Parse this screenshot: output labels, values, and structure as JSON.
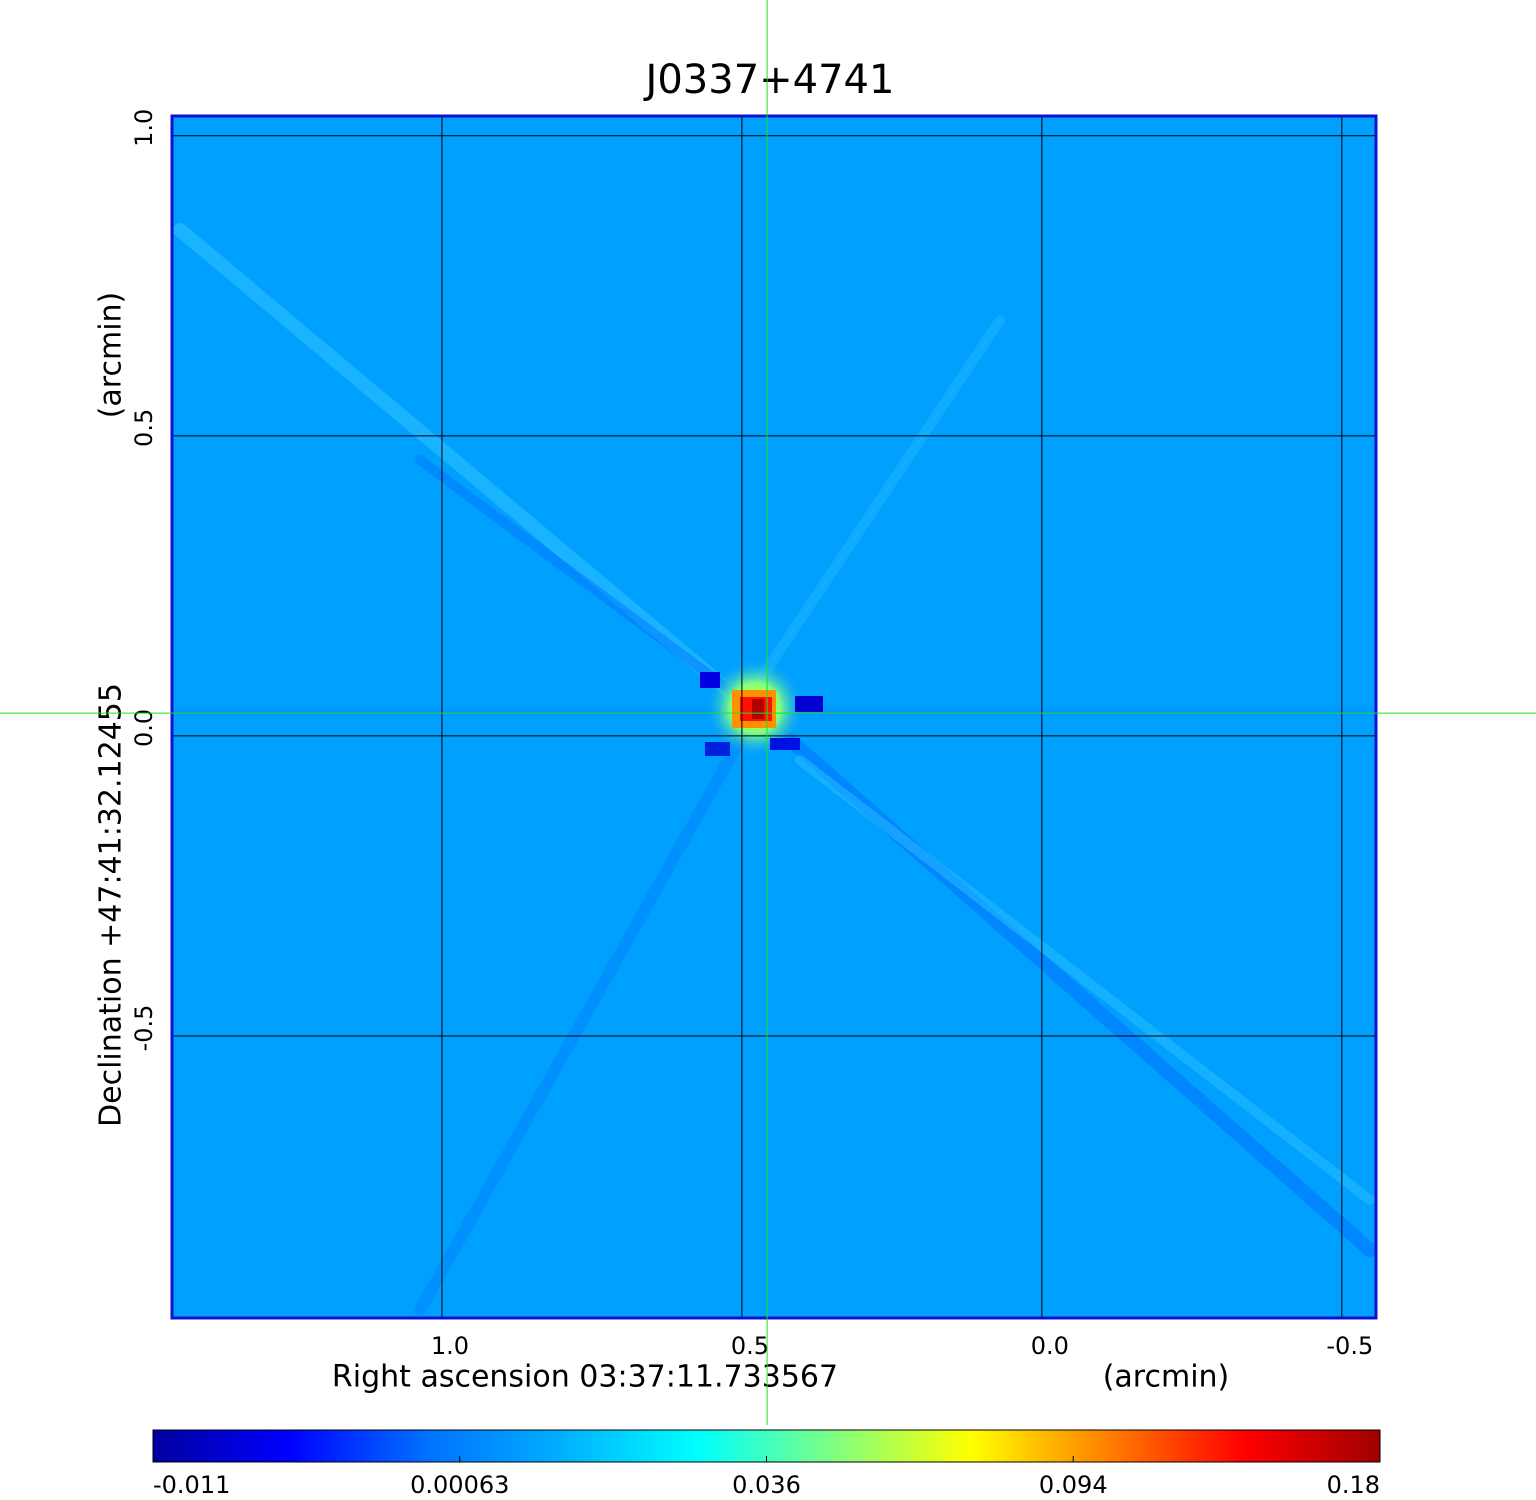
{
  "chart_data": {
    "type": "image",
    "title": "J0337+4741",
    "x_label": "Right ascension  03:37:11.733567",
    "x_unit": "(arcmin)",
    "y_label": "Declination  +47:41:32.12455",
    "y_unit": "(arcmin)",
    "xlim": [
      1.45,
      -0.557
    ],
    "ylim": [
      -0.97,
      1.033
    ],
    "xticks": [
      {
        "value": 1,
        "label": "1.0"
      },
      0.5,
      {
        "value": 0,
        "label": "0.0"
      },
      -0.5
    ],
    "yticks": [
      {
        "value": 1,
        "label": "1.0"
      },
      0.5,
      {
        "value": 0,
        "label": "0.0"
      },
      -0.5
    ],
    "grid": true,
    "marker": {
      "x": 0.458,
      "y": 0.038,
      "color": "#20e020"
    },
    "colorbar": {
      "ticks": [
        -0.011,
        0.00063,
        0.036,
        0.094,
        0.18
      ],
      "colors": [
        "#0000a0",
        "#0000ff",
        "#0070ff",
        "#00b0ff",
        "#00ffff",
        "#80ff80",
        "#ffff00",
        "#ff8000",
        "#ff0000",
        "#a00000"
      ]
    },
    "frame_color": "#1010d0"
  }
}
